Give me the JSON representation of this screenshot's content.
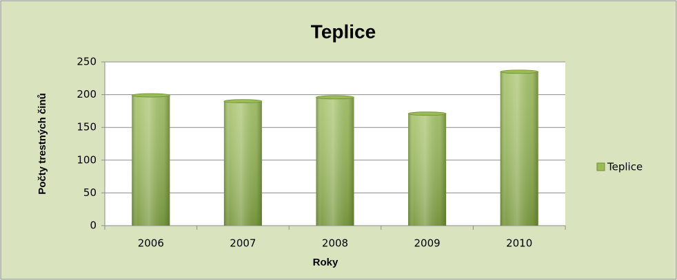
{
  "chart_data": {
    "type": "bar",
    "title": "Teplice",
    "x_label": "Roky",
    "y_label": "Počty trestných činů",
    "categories": [
      "2006",
      "2007",
      "2008",
      "2009",
      "2010"
    ],
    "series": [
      {
        "name": "Teplice",
        "color": "#9bbb59",
        "values": [
          199,
          190,
          196,
          171,
          235
        ]
      }
    ],
    "ylim": [
      0,
      250
    ],
    "yticks": [
      0,
      50,
      100,
      150,
      200,
      250
    ],
    "grid": true,
    "legend": "right"
  }
}
